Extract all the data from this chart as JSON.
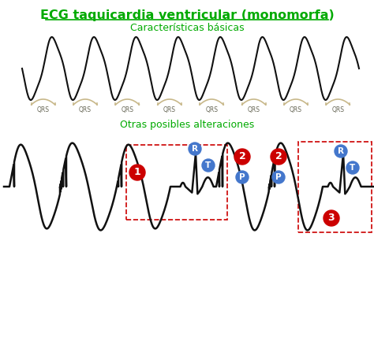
{
  "title": "ECG taquicardia ventricular (monomorfa)",
  "subtitle1": "Características básicas",
  "subtitle2": "Otras posibles alteraciones",
  "title_color": "#00aa00",
  "subtitle1_color": "#00aa00",
  "subtitle2_color": "#00aa00",
  "qrs_label": "QRS",
  "bg_color": "#ffffff",
  "ecg_color": "#111111",
  "bracket_color": "#c8b88a",
  "red_box_color": "#cc0000",
  "blue_circle_color": "#4477cc",
  "red_circle_color": "#cc0000"
}
